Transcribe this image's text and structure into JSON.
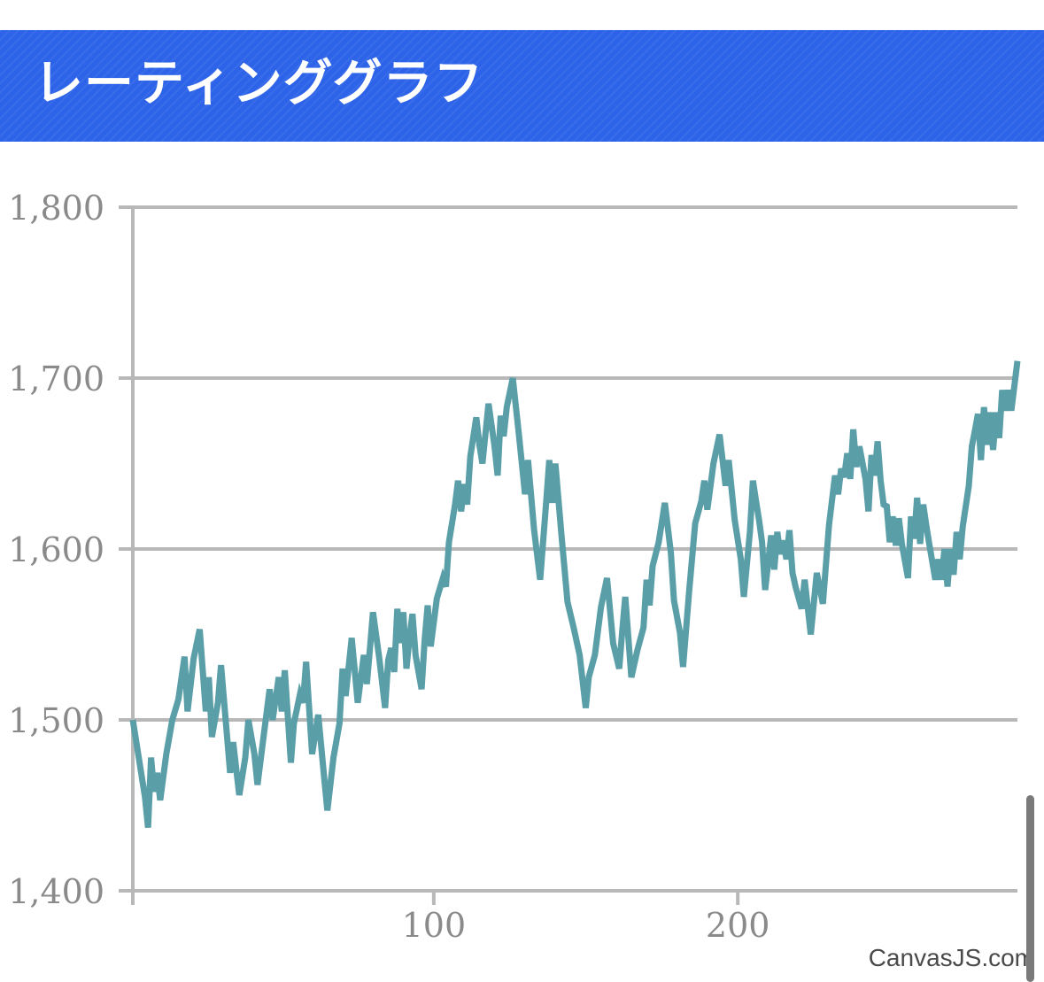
{
  "header": {
    "title": "レーティンググラフ"
  },
  "credit": "CanvasJS.com",
  "colors": {
    "header_bg": "#2d63e8",
    "line": "#5a9ea8",
    "grid": "#b8b8b8",
    "axis": "#b8b8b8",
    "tick_text": "#8a8a8a"
  },
  "chart_data": {
    "type": "line",
    "title": "",
    "xlabel": "",
    "ylabel": "",
    "xlim": [
      1,
      292
    ],
    "ylim": [
      1400,
      1800
    ],
    "x_ticks": [
      100,
      200
    ],
    "x_tick_labels": [
      "100",
      "200"
    ],
    "y_ticks": [
      1400,
      1500,
      1600,
      1700,
      1800
    ],
    "y_tick_labels": [
      "1,400",
      "1,500",
      "1,600",
      "1,700",
      "1,800"
    ],
    "grid": {
      "horizontal": true,
      "vertical": false
    },
    "series": [
      {
        "color": "#5a9ea8",
        "points": [
          [
            1,
            1500
          ],
          [
            5,
            1455
          ],
          [
            6,
            1437
          ],
          [
            7,
            1478
          ],
          [
            8,
            1458
          ],
          [
            9,
            1469
          ],
          [
            10,
            1453
          ],
          [
            12,
            1480
          ],
          [
            14,
            1500
          ],
          [
            16,
            1512
          ],
          [
            18,
            1537
          ],
          [
            19,
            1505
          ],
          [
            21,
            1536
          ],
          [
            23,
            1553
          ],
          [
            25,
            1505
          ],
          [
            26,
            1525
          ],
          [
            27,
            1490
          ],
          [
            29,
            1510
          ],
          [
            30,
            1532
          ],
          [
            33,
            1469
          ],
          [
            34,
            1487
          ],
          [
            36,
            1456
          ],
          [
            38,
            1478
          ],
          [
            39,
            1500
          ],
          [
            41,
            1480
          ],
          [
            42,
            1462
          ],
          [
            44,
            1490
          ],
          [
            46,
            1518
          ],
          [
            47,
            1500
          ],
          [
            49,
            1525
          ],
          [
            50,
            1505
          ],
          [
            51,
            1529
          ],
          [
            53,
            1475
          ],
          [
            54,
            1498
          ],
          [
            56,
            1515
          ],
          [
            57,
            1510
          ],
          [
            58,
            1534
          ],
          [
            60,
            1480
          ],
          [
            62,
            1503
          ],
          [
            64,
            1465
          ],
          [
            65,
            1447
          ],
          [
            67,
            1478
          ],
          [
            69,
            1498
          ],
          [
            70,
            1530
          ],
          [
            71,
            1514
          ],
          [
            73,
            1548
          ],
          [
            75,
            1510
          ],
          [
            77,
            1538
          ],
          [
            78,
            1521
          ],
          [
            79,
            1542
          ],
          [
            80,
            1563
          ],
          [
            82,
            1537
          ],
          [
            84,
            1507
          ],
          [
            85,
            1535
          ],
          [
            86,
            1542
          ],
          [
            87,
            1528
          ],
          [
            88,
            1565
          ],
          [
            89,
            1545
          ],
          [
            90,
            1563
          ],
          [
            91,
            1530
          ],
          [
            92,
            1548
          ],
          [
            93,
            1562
          ],
          [
            94,
            1538
          ],
          [
            96,
            1518
          ],
          [
            97,
            1547
          ],
          [
            98,
            1567
          ],
          [
            99,
            1543
          ],
          [
            101,
            1571
          ],
          [
            103,
            1583
          ],
          [
            104,
            1578
          ],
          [
            105,
            1604
          ],
          [
            107,
            1626
          ],
          [
            108,
            1640
          ],
          [
            109,
            1622
          ],
          [
            110,
            1638
          ],
          [
            111,
            1626
          ],
          [
            112,
            1654
          ],
          [
            114,
            1677
          ],
          [
            115,
            1661
          ],
          [
            116,
            1650
          ],
          [
            118,
            1685
          ],
          [
            120,
            1660
          ],
          [
            121,
            1643
          ],
          [
            122,
            1678
          ],
          [
            123,
            1666
          ],
          [
            124,
            1683
          ],
          [
            126,
            1700
          ],
          [
            128,
            1667
          ],
          [
            130,
            1632
          ],
          [
            131,
            1652
          ],
          [
            133,
            1611
          ],
          [
            135,
            1582
          ],
          [
            137,
            1628
          ],
          [
            138,
            1652
          ],
          [
            139,
            1627
          ],
          [
            140,
            1650
          ],
          [
            142,
            1608
          ],
          [
            144,
            1569
          ],
          [
            146,
            1554
          ],
          [
            148,
            1538
          ],
          [
            150,
            1507
          ],
          [
            151,
            1525
          ],
          [
            153,
            1538
          ],
          [
            155,
            1566
          ],
          [
            157,
            1583
          ],
          [
            159,
            1545
          ],
          [
            161,
            1530
          ],
          [
            162,
            1552
          ],
          [
            163,
            1572
          ],
          [
            165,
            1525
          ],
          [
            167,
            1541
          ],
          [
            169,
            1554
          ],
          [
            170,
            1582
          ],
          [
            171,
            1567
          ],
          [
            172,
            1590
          ],
          [
            174,
            1604
          ],
          [
            176,
            1627
          ],
          [
            178,
            1598
          ],
          [
            179,
            1570
          ],
          [
            181,
            1551
          ],
          [
            182,
            1531
          ],
          [
            184,
            1575
          ],
          [
            186,
            1615
          ],
          [
            188,
            1628
          ],
          [
            189,
            1640
          ],
          [
            190,
            1623
          ],
          [
            192,
            1650
          ],
          [
            194,
            1667
          ],
          [
            196,
            1637
          ],
          [
            197,
            1652
          ],
          [
            199,
            1617
          ],
          [
            201,
            1594
          ],
          [
            202,
            1572
          ],
          [
            204,
            1610
          ],
          [
            205,
            1640
          ],
          [
            206,
            1628
          ],
          [
            207,
            1617
          ],
          [
            208,
            1604
          ],
          [
            209,
            1576
          ],
          [
            211,
            1608
          ],
          [
            212,
            1588
          ],
          [
            213,
            1610
          ],
          [
            214,
            1597
          ],
          [
            215,
            1605
          ],
          [
            216,
            1594
          ],
          [
            217,
            1611
          ],
          [
            218,
            1586
          ],
          [
            219,
            1578
          ],
          [
            221,
            1565
          ],
          [
            222,
            1582
          ],
          [
            224,
            1550
          ],
          [
            226,
            1586
          ],
          [
            228,
            1568
          ],
          [
            230,
            1614
          ],
          [
            232,
            1643
          ],
          [
            233,
            1632
          ],
          [
            234,
            1647
          ],
          [
            235,
            1642
          ],
          [
            236,
            1656
          ],
          [
            237,
            1641
          ],
          [
            238,
            1670
          ],
          [
            239,
            1648
          ],
          [
            240,
            1660
          ],
          [
            242,
            1641
          ],
          [
            243,
            1622
          ],
          [
            244,
            1655
          ],
          [
            245,
            1643
          ],
          [
            246,
            1663
          ],
          [
            247,
            1640
          ],
          [
            248,
            1626
          ],
          [
            249,
            1625
          ],
          [
            250,
            1604
          ],
          [
            251,
            1619
          ],
          [
            252,
            1602
          ],
          [
            253,
            1618
          ],
          [
            254,
            1603
          ],
          [
            256,
            1583
          ],
          [
            257,
            1619
          ],
          [
            258,
            1606
          ],
          [
            259,
            1630
          ],
          [
            260,
            1603
          ],
          [
            261,
            1626
          ],
          [
            262,
            1614
          ],
          [
            263,
            1603
          ],
          [
            265,
            1582
          ],
          [
            266,
            1594
          ],
          [
            267,
            1582
          ],
          [
            268,
            1600
          ],
          [
            269,
            1578
          ],
          [
            270,
            1600
          ],
          [
            271,
            1585
          ],
          [
            272,
            1610
          ],
          [
            273,
            1594
          ],
          [
            274,
            1613
          ],
          [
            276,
            1637
          ],
          [
            277,
            1660
          ],
          [
            278,
            1669
          ],
          [
            279,
            1679
          ],
          [
            280,
            1652
          ],
          [
            281,
            1683
          ],
          [
            282,
            1661
          ],
          [
            283,
            1680
          ],
          [
            284,
            1658
          ],
          [
            285,
            1680
          ],
          [
            286,
            1665
          ],
          [
            287,
            1693
          ],
          [
            288,
            1681
          ],
          [
            289,
            1693
          ],
          [
            290,
            1681
          ],
          [
            292,
            1710
          ]
        ]
      }
    ]
  }
}
